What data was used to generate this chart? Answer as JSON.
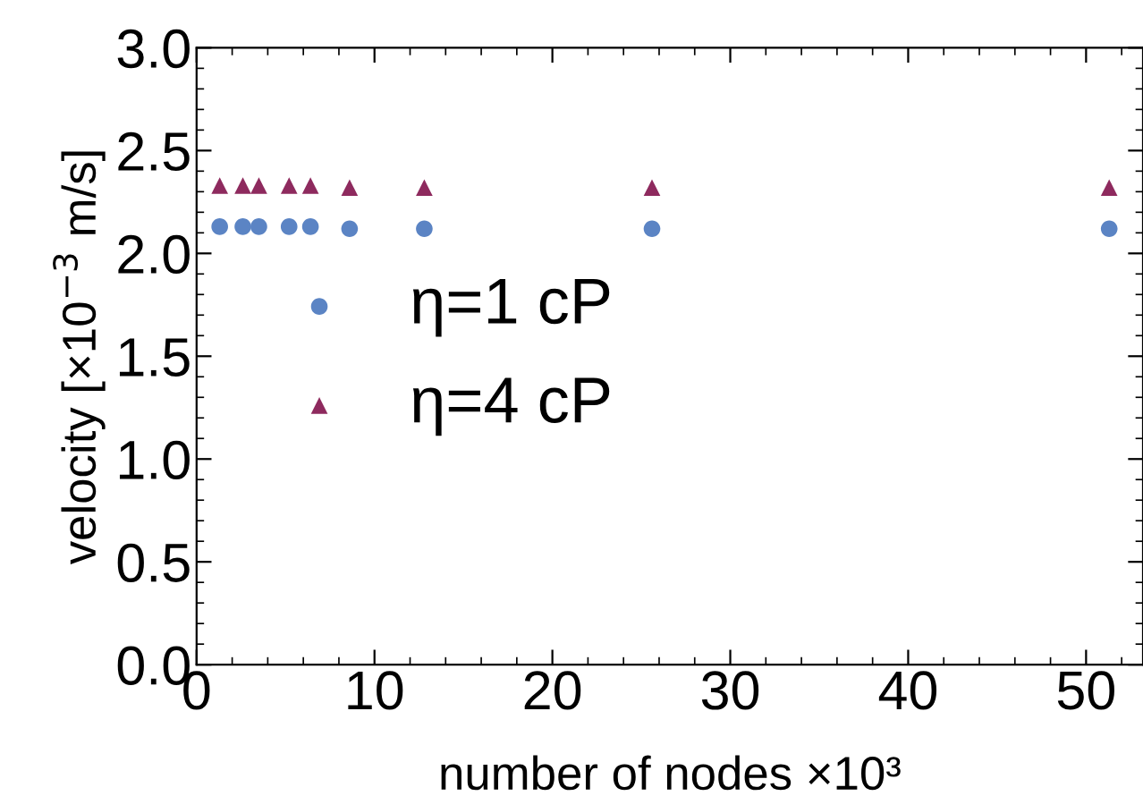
{
  "chart_data": {
    "type": "scatter",
    "xlabel": "number of nodes ×10³",
    "ylabel": "velocity [×10$^{−3}$ m/s]",
    "xlim": [
      0,
      53.2
    ],
    "ylim": [
      0,
      3.0
    ],
    "xticks": [
      0,
      10,
      20,
      30,
      40,
      50
    ],
    "yticks": [
      {
        "value": 0,
        "label": "0.0"
      },
      {
        "value": 0.5,
        "label": "0.5"
      },
      {
        "value": 1,
        "label": "1.0"
      },
      {
        "value": 1.5,
        "label": "1.5"
      },
      {
        "value": 2,
        "label": "2.0"
      },
      {
        "value": 2.5,
        "label": "2.5"
      },
      {
        "value": 3,
        "label": "3.0"
      }
    ],
    "legend": "left",
    "grid": false,
    "series": [
      {
        "name": "η=1 cP",
        "color": "#5b84c4",
        "marker": "circle",
        "x": [
          1.3,
          2.6,
          3.5,
          5.2,
          6.4,
          8.6,
          12.8,
          25.6,
          51.3
        ],
        "values": [
          2.13,
          2.13,
          2.13,
          2.13,
          2.13,
          2.12,
          2.12,
          2.12,
          2.12
        ]
      },
      {
        "name": "η=4 cP",
        "color": "#8e2a5e",
        "marker": "triangle",
        "x": [
          1.3,
          2.6,
          3.5,
          5.2,
          6.4,
          8.6,
          12.8,
          25.6,
          51.3
        ],
        "values": [
          2.33,
          2.33,
          2.33,
          2.33,
          2.33,
          2.32,
          2.32,
          2.32,
          2.32
        ]
      }
    ]
  }
}
